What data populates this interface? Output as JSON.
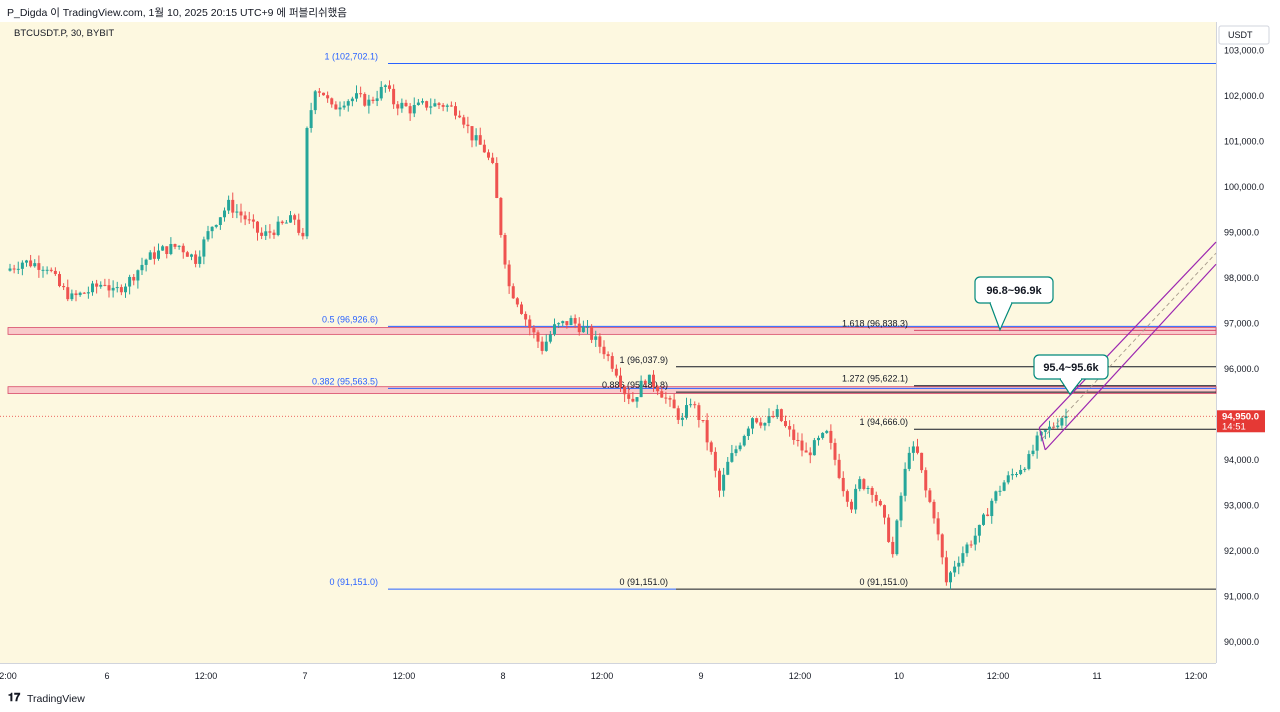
{
  "header": {
    "publish_line": "P_Digda 이 TradingView.com, 1월 10, 2025 20:15 UTC+9 에 퍼블리쉬했음"
  },
  "footer": {
    "brand": "TradingView",
    "logo_icon": "tradingview-logo-icon"
  },
  "colors": {
    "background": "#fdf8e0",
    "up": "#26a69a",
    "down": "#ef5350",
    "fib_blue": "#2962ff",
    "zone_pink": "#f7b6c1",
    "zone_line": "#d84a6a",
    "channel": "#9c27b0",
    "price_badge": "#e53935"
  },
  "chart_data": {
    "type": "candlestick",
    "symbol_label": "BTCUSDT.P, 30, BYBIT",
    "currency_label": "USDT",
    "y_range": [
      89500,
      103500
    ],
    "grid": false,
    "y_ticks": [
      {
        "value": 103000,
        "label": "103,000.0"
      },
      {
        "value": 102000,
        "label": "102,000.0"
      },
      {
        "value": 101000,
        "label": "101,000.0"
      },
      {
        "value": 100000,
        "label": "100,000.0"
      },
      {
        "value": 99000,
        "label": "99,000.0"
      },
      {
        "value": 98000,
        "label": "98,000.0"
      },
      {
        "value": 97000,
        "label": "97,000.0"
      },
      {
        "value": 96000,
        "label": "96,000.0"
      },
      {
        "value": 95000,
        "label": "95,000.0"
      },
      {
        "value": 94000,
        "label": "94,000.0"
      },
      {
        "value": 93000,
        "label": "93,000.0"
      },
      {
        "value": 92000,
        "label": "92,000.0"
      },
      {
        "value": 91000,
        "label": "91,000.0"
      },
      {
        "value": 90000,
        "label": "90,000.0"
      }
    ],
    "x_ticks": [
      {
        "label": "2:00",
        "t": 0
      },
      {
        "label": "6",
        "t": 24
      },
      {
        "label": "12:00",
        "t": 48
      },
      {
        "label": "7",
        "t": 72
      },
      {
        "label": "12:00",
        "t": 96
      },
      {
        "label": "8",
        "t": 120
      },
      {
        "label": "12:00",
        "t": 144
      },
      {
        "label": "9",
        "t": 168
      },
      {
        "label": "12:00",
        "t": 192
      },
      {
        "label": "10",
        "t": 216
      },
      {
        "label": "12:00",
        "t": 240
      },
      {
        "label": "11",
        "t": 264
      },
      {
        "label": "12:00",
        "t": 288
      }
    ],
    "last_price": {
      "label": "94,950.0",
      "countdown": "14:51",
      "value": 94950
    },
    "price_path": [
      [
        0,
        98150
      ],
      [
        4,
        98350
      ],
      [
        10,
        98250
      ],
      [
        13,
        97800
      ],
      [
        16,
        97550
      ],
      [
        20,
        97700
      ],
      [
        24,
        97900
      ],
      [
        26,
        97650
      ],
      [
        30,
        97950
      ],
      [
        34,
        98400
      ],
      [
        38,
        98600
      ],
      [
        42,
        98700
      ],
      [
        46,
        98400
      ],
      [
        50,
        99150
      ],
      [
        54,
        99600
      ],
      [
        58,
        99300
      ],
      [
        62,
        98900
      ],
      [
        66,
        99100
      ],
      [
        70,
        99300
      ],
      [
        72,
        98800
      ],
      [
        73,
        101200
      ],
      [
        75,
        102200
      ],
      [
        77,
        102050
      ],
      [
        79,
        101700
      ],
      [
        82,
        101900
      ],
      [
        85,
        101950
      ],
      [
        88,
        101850
      ],
      [
        92,
        102200
      ],
      [
        94,
        101850
      ],
      [
        98,
        101700
      ],
      [
        102,
        101800
      ],
      [
        106,
        101800
      ],
      [
        110,
        101650
      ],
      [
        113,
        101100
      ],
      [
        116,
        100800
      ],
      [
        118,
        100400
      ],
      [
        120,
        99000
      ],
      [
        122,
        97800
      ],
      [
        124,
        97500
      ],
      [
        127,
        96900
      ],
      [
        130,
        96450
      ],
      [
        133,
        96900
      ],
      [
        137,
        97050
      ],
      [
        141,
        96800
      ],
      [
        145,
        96400
      ],
      [
        148,
        95950
      ],
      [
        150,
        95500
      ],
      [
        152,
        95300
      ],
      [
        155,
        95800
      ],
      [
        158,
        95600
      ],
      [
        161,
        95200
      ],
      [
        164,
        94850
      ],
      [
        166,
        95300
      ],
      [
        169,
        94750
      ],
      [
        171,
        94100
      ],
      [
        173,
        93300
      ],
      [
        175,
        93900
      ],
      [
        178,
        94400
      ],
      [
        181,
        94950
      ],
      [
        184,
        94800
      ],
      [
        187,
        95000
      ],
      [
        189,
        94700
      ],
      [
        192,
        94350
      ],
      [
        194,
        94100
      ],
      [
        197,
        94400
      ],
      [
        199,
        94550
      ],
      [
        201,
        94000
      ],
      [
        203,
        93400
      ],
      [
        205,
        93000
      ],
      [
        207,
        93500
      ],
      [
        210,
        93350
      ],
      [
        212,
        92900
      ],
      [
        214,
        92300
      ],
      [
        215,
        91900
      ],
      [
        217,
        93200
      ],
      [
        219,
        94250
      ],
      [
        221,
        94100
      ],
      [
        223,
        93300
      ],
      [
        225,
        92800
      ],
      [
        227,
        91800
      ],
      [
        228,
        91300
      ],
      [
        230,
        91700
      ],
      [
        233,
        92100
      ],
      [
        236,
        92450
      ],
      [
        239,
        93100
      ],
      [
        242,
        93500
      ],
      [
        245,
        93750
      ],
      [
        248,
        94000
      ],
      [
        250,
        94400
      ],
      [
        252,
        94600
      ],
      [
        254,
        94750
      ],
      [
        256,
        94950
      ]
    ],
    "fib_retracement": {
      "levels": [
        {
          "label": "1 (102,702.1)",
          "value": 102702.1
        },
        {
          "label": "0.5 (96,926.6)",
          "value": 96926.6
        },
        {
          "label": "0.382 (95,563.5)",
          "value": 95563.5
        },
        {
          "label": "0 (91,151.0)",
          "value": 91151.0
        }
      ]
    },
    "fib_extension_1": {
      "levels": [
        {
          "label": "1 (96,037.9)",
          "value": 96037.9
        },
        {
          "label": "0.886 (95,480.8)",
          "value": 95480.8
        },
        {
          "label": "0 (91,151.0)",
          "value": 91151.0
        }
      ]
    },
    "fib_extension_2": {
      "levels": [
        {
          "label": "1.618 (96,838.3)",
          "value": 96838.3
        },
        {
          "label": "1.272 (95,622.1)",
          "value": 95622.1
        },
        {
          "label": "1 (94,666.0)",
          "value": 94666.0
        },
        {
          "label": "0 (91,151.0)",
          "value": 91151.0
        }
      ]
    },
    "zones": [
      {
        "low": 96750,
        "high": 96900
      },
      {
        "low": 95450,
        "high": 95600
      }
    ],
    "callouts": [
      {
        "label": "96.8~96.9k",
        "target": 96850
      },
      {
        "label": "95.4~95.6k",
        "target": 95500
      }
    ]
  }
}
